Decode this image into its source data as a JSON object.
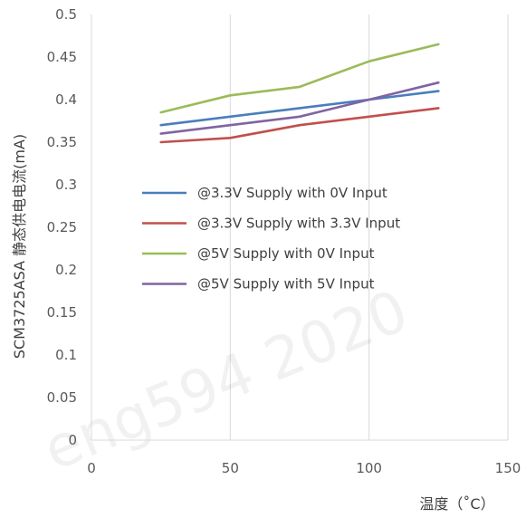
{
  "chart_data": {
    "type": "line",
    "title": "",
    "xlabel": "温度（˚C）",
    "ylabel": "SCM3725ASA 静态供电电流(mA)",
    "xlim": [
      0,
      150
    ],
    "ylim": [
      0,
      0.5
    ],
    "x_ticks": [
      "0",
      "50",
      "100",
      "150"
    ],
    "y_ticks": [
      "0",
      "0.05",
      "0.1",
      "0.15",
      "0.2",
      "0.25",
      "0.3",
      "0.35",
      "0.4",
      "0.45",
      "0.5"
    ],
    "grid": "vertical",
    "legend_position": "center-left",
    "watermark": "eng594 2020",
    "series": [
      {
        "name": "@3.3V Supply with 0V Input",
        "color": "#4A7EBB",
        "x": [
          25,
          50,
          75,
          100,
          125
        ],
        "y": [
          0.37,
          0.38,
          0.39,
          0.4,
          0.41
        ]
      },
      {
        "name": "@3.3V Supply with 3.3V Input",
        "color": "#C0504D",
        "x": [
          25,
          50,
          75,
          100,
          125
        ],
        "y": [
          0.35,
          0.355,
          0.37,
          0.38,
          0.39
        ]
      },
      {
        "name": "@5V Supply with 0V Input",
        "color": "#9BBB59",
        "x": [
          25,
          50,
          75,
          100,
          125
        ],
        "y": [
          0.385,
          0.405,
          0.415,
          0.445,
          0.465
        ]
      },
      {
        "name": "@5V Supply with 5V Input",
        "color": "#8064A2",
        "x": [
          25,
          50,
          75,
          100,
          125
        ],
        "y": [
          0.36,
          0.37,
          0.38,
          0.4,
          0.42
        ]
      }
    ]
  }
}
